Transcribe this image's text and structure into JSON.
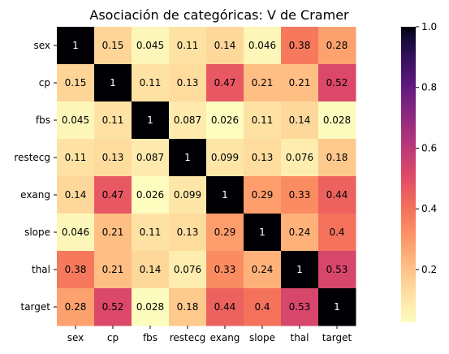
{
  "chart_data": {
    "type": "heatmap",
    "title": "Asociación de categóricas: V de Cramer",
    "xlabel": "",
    "ylabel": "",
    "categories_x": [
      "sex",
      "cp",
      "fbs",
      "restecg",
      "exang",
      "slope",
      "thal",
      "target"
    ],
    "categories_y": [
      "sex",
      "cp",
      "fbs",
      "restecg",
      "exang",
      "slope",
      "thal",
      "target"
    ],
    "values": [
      [
        1,
        0.15,
        0.045,
        0.11,
        0.14,
        0.046,
        0.38,
        0.28
      ],
      [
        0.15,
        1,
        0.11,
        0.13,
        0.47,
        0.21,
        0.21,
        0.52
      ],
      [
        0.045,
        0.11,
        1,
        0.087,
        0.026,
        0.11,
        0.14,
        0.028
      ],
      [
        0.11,
        0.13,
        0.087,
        1,
        0.099,
        0.13,
        0.076,
        0.18
      ],
      [
        0.14,
        0.47,
        0.026,
        0.099,
        1,
        0.29,
        0.33,
        0.44
      ],
      [
        0.046,
        0.21,
        0.11,
        0.13,
        0.29,
        1,
        0.24,
        0.4
      ],
      [
        0.38,
        0.21,
        0.14,
        0.076,
        0.33,
        0.24,
        1,
        0.53
      ],
      [
        0.28,
        0.52,
        0.028,
        0.18,
        0.44,
        0.4,
        0.53,
        1
      ]
    ],
    "colormap": "magma_r",
    "colorbar": {
      "vmin": 0.026,
      "vmax": 1,
      "ticks": [
        0.2,
        0.4,
        0.6,
        0.8,
        1.0
      ],
      "tick_labels": [
        "0.2",
        "0.4",
        "0.6",
        "0.8",
        "1.0"
      ]
    },
    "annotate": true,
    "grid": false
  }
}
